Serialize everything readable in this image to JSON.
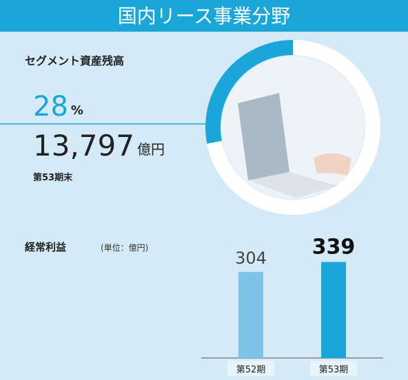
{
  "header": {
    "title": "国内リース事業分野"
  },
  "chart_data": [
    {
      "type": "pie",
      "title": "セグメント資産残高",
      "values": [
        28
      ],
      "value_unit": "%",
      "color": "#1ba6da",
      "amount": "13,797",
      "amount_unit": "億円",
      "note": "第53期末"
    },
    {
      "type": "bar",
      "title": "経常利益",
      "subtitle": "(単位：億円)",
      "categories": [
        "第52期",
        "第53期"
      ],
      "values": [
        304,
        339
      ],
      "colors": [
        "#7ec4e8",
        "#1ba6da"
      ],
      "ylim": [
        0,
        350
      ]
    }
  ]
}
